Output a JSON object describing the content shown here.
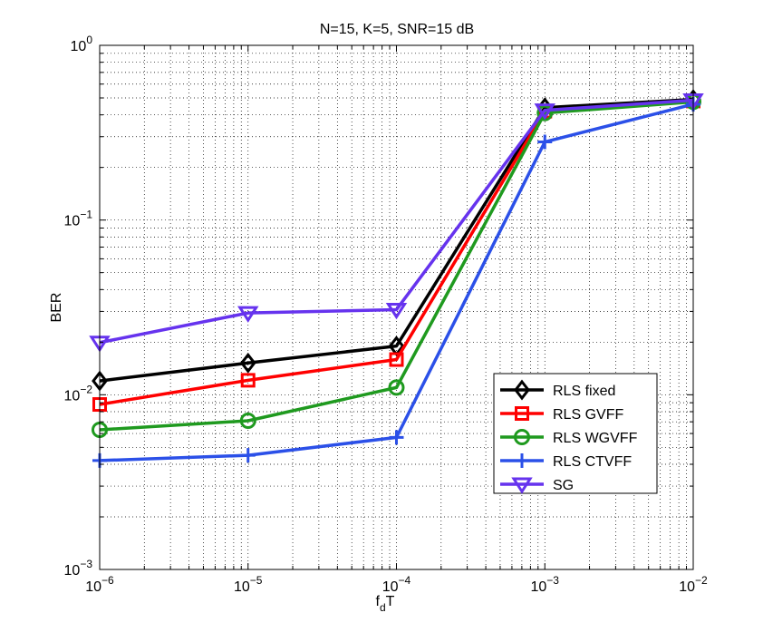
{
  "chart_data": {
    "type": "line",
    "title": "N=15, K=5, SNR=15 dB",
    "xlabel": "f",
    "xlabel_sub": "d",
    "xlabel_suffix": "T",
    "ylabel": "BER",
    "xscale": "log",
    "yscale": "log",
    "xlim": [
      1e-06,
      0.01
    ],
    "ylim": [
      0.001,
      1
    ],
    "grid": true,
    "legend_position": "lower-right",
    "x": [
      1e-06,
      1e-05,
      0.0001,
      0.001,
      0.01
    ],
    "x_ticks": [
      {
        "base": "10",
        "exp": "−6"
      },
      {
        "base": "10",
        "exp": "−5"
      },
      {
        "base": "10",
        "exp": "−4"
      },
      {
        "base": "10",
        "exp": "−3"
      },
      {
        "base": "10",
        "exp": "−2"
      }
    ],
    "y_ticks": [
      {
        "base": "10",
        "exp": "0"
      },
      {
        "base": "10",
        "exp": "−1"
      },
      {
        "base": "10",
        "exp": "−2"
      },
      {
        "base": "10",
        "exp": "−3"
      }
    ],
    "series": [
      {
        "name": "RLS fixed",
        "color": "#000000",
        "marker": "diamond",
        "values": [
          0.012,
          0.0152,
          0.019,
          0.44,
          0.49
        ]
      },
      {
        "name": "RLS GVFF",
        "color": "#ff0000",
        "marker": "square",
        "values": [
          0.0088,
          0.0121,
          0.0159,
          0.42,
          0.48
        ]
      },
      {
        "name": "RLS WGVFF",
        "color": "#1f9a1f",
        "marker": "circle",
        "values": [
          0.0063,
          0.0071,
          0.011,
          0.41,
          0.475
        ]
      },
      {
        "name": "RLS CTVFF",
        "color": "#2b50e8",
        "marker": "plus",
        "values": [
          0.0042,
          0.0045,
          0.0057,
          0.28,
          0.46
        ]
      },
      {
        "name": "SG",
        "color": "#6633ee",
        "marker": "triangle-down",
        "values": [
          0.0199,
          0.0294,
          0.0307,
          0.425,
          0.485
        ]
      }
    ]
  }
}
